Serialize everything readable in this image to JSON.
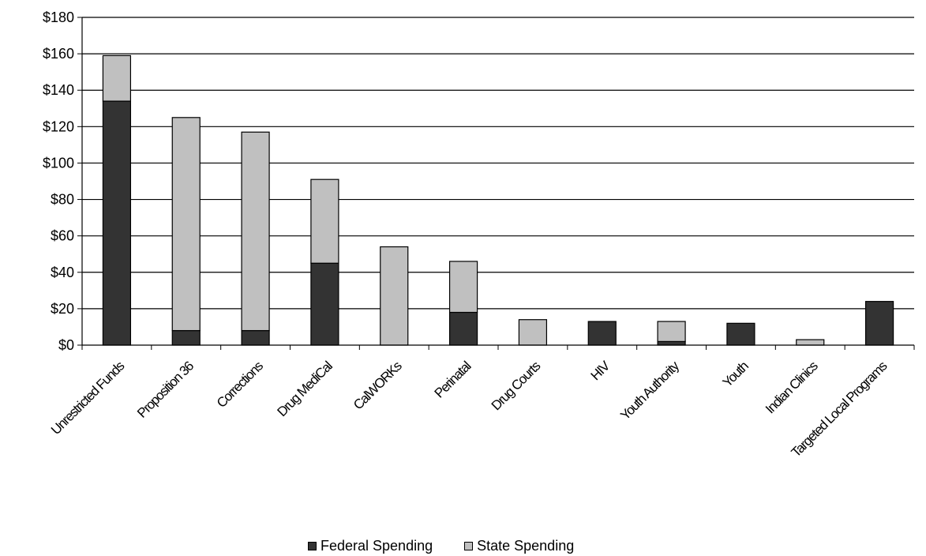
{
  "chart_data": {
    "type": "bar",
    "stacked": true,
    "categories": [
      "Unrestricted Funds",
      "Proposition 36",
      "Corrections",
      "Drug MediCal",
      "CalWORKs",
      "Perinatal",
      "Drug Courts",
      "HIV",
      "Youth Authority",
      "Youth",
      "Indian Clinics",
      "Targeted Local Programs"
    ],
    "series": [
      {
        "name": "Federal Spending",
        "color": "#333333",
        "values": [
          134,
          8,
          8,
          45,
          0,
          18,
          0,
          13,
          2,
          12,
          0,
          24
        ]
      },
      {
        "name": "State Spending",
        "color": "#c0c0c0",
        "values": [
          25,
          117,
          109,
          46,
          54,
          28,
          14,
          0,
          11,
          0,
          3,
          0
        ]
      }
    ],
    "ylim": [
      0,
      180
    ],
    "yticks": [
      0,
      20,
      40,
      60,
      80,
      100,
      120,
      140,
      160,
      180
    ],
    "ytick_labels": [
      "$0",
      "$20",
      "$40",
      "$60",
      "$80",
      "$100",
      "$120",
      "$140",
      "$160",
      "$180"
    ],
    "grid": true,
    "legend_position": "bottom"
  }
}
